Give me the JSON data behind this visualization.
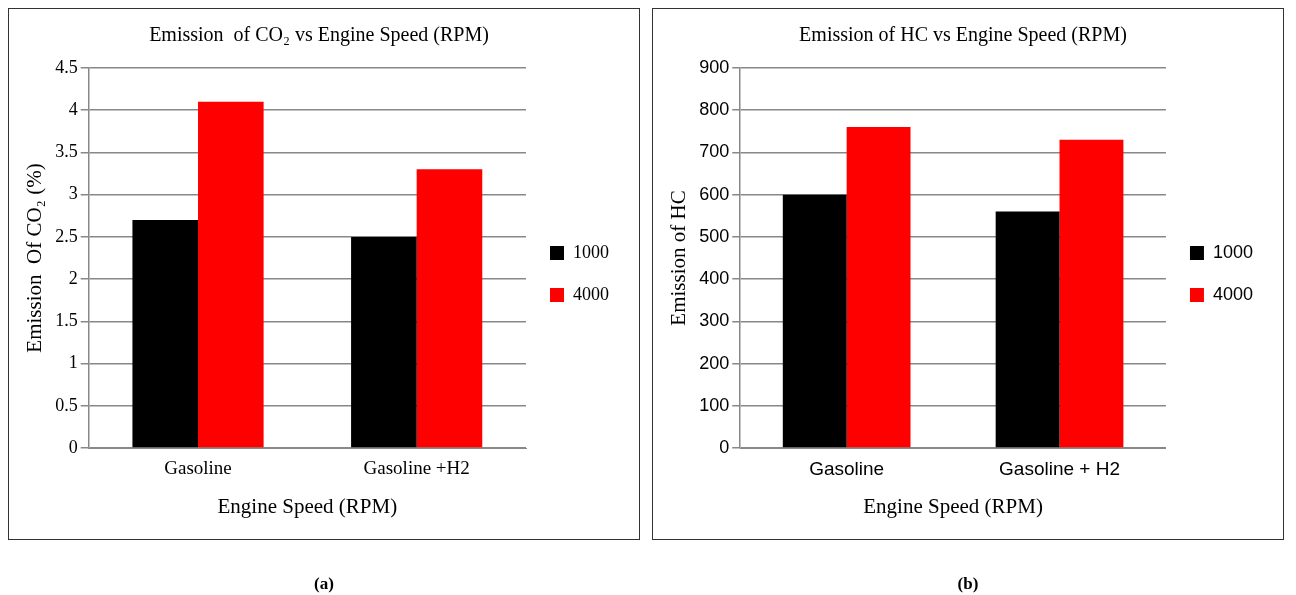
{
  "chart_data": [
    {
      "type": "bar",
      "title": "Emission  of CO₂ vs Engine Speed (RPM)",
      "xlabel": "Engine Speed (RPM)",
      "ylabel": "Emission  Of CO₂ (%)",
      "categories": [
        "Gasoline",
        "Gasoline +H2"
      ],
      "series": [
        {
          "name": "1000",
          "color": "#000000",
          "values": [
            2.7,
            2.5
          ]
        },
        {
          "name": "4000",
          "color": "#ff0000",
          "values": [
            4.1,
            3.3
          ]
        }
      ],
      "ylim": [
        0,
        4.5
      ],
      "yticks": [
        0,
        {
          "value": 0.5,
          "label": "0.5"
        },
        1,
        {
          "value": 1.5,
          "label": "1.5"
        },
        2,
        {
          "value": 2.5,
          "label": "2.5"
        },
        3,
        {
          "value": 3.5,
          "label": "3.5"
        },
        4,
        {
          "value": 4.5,
          "label": "4.5"
        }
      ],
      "grid": "y",
      "legend": "right",
      "annotations": [
        "(a)"
      ]
    },
    {
      "type": "bar",
      "title": "Emission of HC vs Engine Speed (RPM)",
      "xlabel": "Engine Speed (RPM)",
      "ylabel": "Emission of HC",
      "categories": [
        "Gasoline",
        "Gasoline + H2"
      ],
      "series": [
        {
          "name": "1000",
          "color": "#000000",
          "values": [
            600,
            560
          ]
        },
        {
          "name": "4000",
          "color": "#ff0000",
          "values": [
            760,
            730
          ]
        }
      ],
      "ylim": [
        0,
        900
      ],
      "yticks": [
        0,
        100,
        200,
        300,
        400,
        500,
        600,
        700,
        800,
        900
      ],
      "grid": "y",
      "legend": "right",
      "annotations": [
        "(b)"
      ]
    }
  ]
}
